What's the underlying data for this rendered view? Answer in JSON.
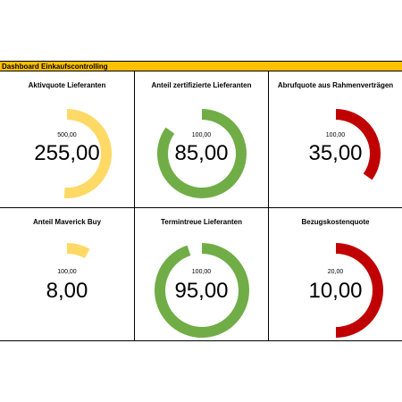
{
  "dashboard": {
    "title": "Dashboard Einkaufscontrolling",
    "colors": {
      "title_bar": "#ffc000",
      "yellow": "#ffd966",
      "green": "#70ad47",
      "red": "#c00000"
    },
    "kpis": [
      {
        "title": "Aktivquote Lieferanten",
        "max_label": "500,00",
        "value_label": "255,00",
        "value": 255,
        "max": 500,
        "color": "yellow"
      },
      {
        "title": "Anteil zertifizierte Lieferanten",
        "max_label": "100,00",
        "value_label": "85,00",
        "value": 85,
        "max": 100,
        "color": "green"
      },
      {
        "title": "Abrufquote aus Rahmenverträgen",
        "max_label": "100,00",
        "value_label": "35,00",
        "value": 35,
        "max": 100,
        "color": "red"
      },
      {
        "title": "Anteil Maverick Buy",
        "max_label": "100,00",
        "value_label": "8,00",
        "value": 8,
        "max": 100,
        "color": "yellow"
      },
      {
        "title": "Termintreue Lieferanten",
        "max_label": "100,00",
        "value_label": "95,00",
        "value": 95,
        "max": 100,
        "color": "green"
      },
      {
        "title": "Bezugskostenquote",
        "max_label": "20,00",
        "value_label": "10,00",
        "value": 10,
        "max": 20,
        "color": "red"
      }
    ]
  }
}
